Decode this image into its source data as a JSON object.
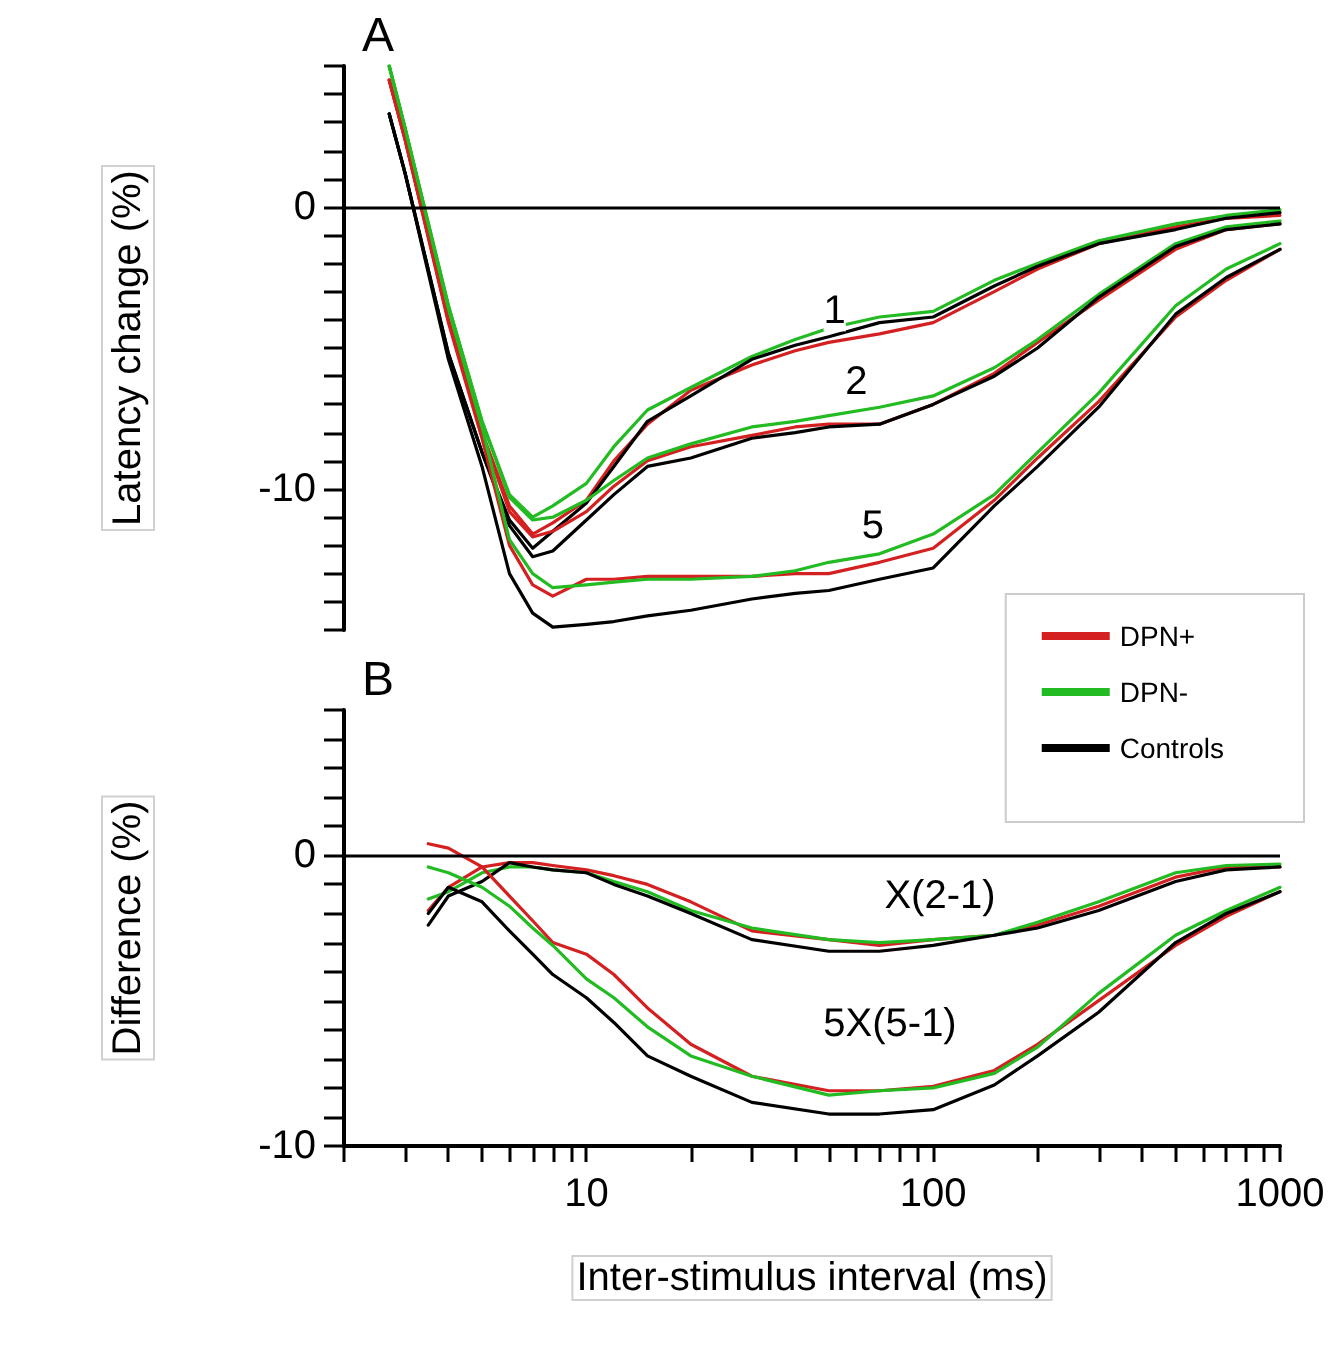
{
  "chart_data": [
    {
      "type": "line",
      "title": "A",
      "ylabel": "Latency change (%)",
      "xlim": [
        2,
        1000
      ],
      "ylim": [
        -15,
        5
      ],
      "yticks": [
        {
          "value": -15,
          "label": null
        },
        {
          "value": -14,
          "label": null
        },
        {
          "value": -13,
          "label": null
        },
        {
          "value": -12,
          "label": null
        },
        {
          "value": -11,
          "label": null
        },
        {
          "value": -10,
          "label": "-10"
        },
        {
          "value": -9,
          "label": null
        },
        {
          "value": -8,
          "label": null
        },
        {
          "value": -7,
          "label": null
        },
        {
          "value": -6,
          "label": null
        },
        {
          "value": -5,
          "label": null
        },
        {
          "value": -4,
          "label": null
        },
        {
          "value": -3,
          "label": null
        },
        {
          "value": -2,
          "label": null
        },
        {
          "value": -1,
          "label": null
        },
        {
          "value": 0,
          "label": "0"
        },
        {
          "value": 1,
          "label": null
        },
        {
          "value": 2,
          "label": null
        },
        {
          "value": 3,
          "label": null
        },
        {
          "value": 4,
          "label": null
        },
        {
          "value": 5,
          "label": null
        }
      ],
      "log": "x",
      "tick_labels": "y",
      "legend": "bottom right",
      "grid": false,
      "ref_lines": [
        {
          "axis": "y",
          "value": 0,
          "color": "#000000"
        }
      ],
      "annotations": [
        {
          "text": "1",
          "x": 52,
          "y": -3.7
        },
        {
          "text": "2",
          "x": 60,
          "y": -6.2
        },
        {
          "text": "5",
          "x": 67,
          "y": -11.3
        }
      ],
      "x": [
        2.7,
        3,
        4,
        5,
        6,
        7,
        8,
        10,
        12,
        15,
        20,
        30,
        40,
        50,
        70,
        100,
        150,
        200,
        300,
        500,
        700,
        1000
      ],
      "series": [
        {
          "name": "DPN+",
          "color": "#d42020",
          "values": [
            4.5,
            2.4,
            -4,
            -8,
            -10.6,
            -11.6,
            -11.2,
            -10.4,
            -9,
            -7.7,
            -6.5,
            -5.6,
            -5.1,
            -4.8,
            -4.5,
            -4.1,
            -3,
            -2.2,
            -1.3,
            -0.7,
            -0.4,
            -0.3
          ]
        },
        {
          "name": "DPN-",
          "color": "#22bb22",
          "values": [
            5,
            2.8,
            -3.5,
            -7.6,
            -10.2,
            -11,
            -10.6,
            -9.8,
            -8.5,
            -7.2,
            -6.4,
            -5.3,
            -4.7,
            -4.3,
            -3.9,
            -3.7,
            -2.6,
            -2,
            -1.2,
            -0.6,
            -0.3,
            -0.1
          ]
        },
        {
          "name": "Controls",
          "color": "#000000",
          "values": [
            3.3,
            1.2,
            -5.2,
            -8.7,
            -11.1,
            -12.1,
            -11.5,
            -10.5,
            -9.2,
            -7.6,
            -6.7,
            -5.4,
            -4.9,
            -4.6,
            -4.1,
            -3.9,
            -2.8,
            -2.1,
            -1.3,
            -0.8,
            -0.4,
            -0.2
          ]
        },
        {
          "color": "#d42020",
          "values": [
            4.5,
            2.4,
            -4,
            -8,
            -10.8,
            -11.7,
            -11.5,
            -10.8,
            -9.9,
            -9,
            -8.5,
            -8.1,
            -7.8,
            -7.7,
            -7.7,
            -7,
            -5.9,
            -4.8,
            -3.3,
            -1.5,
            -0.8,
            -0.6
          ]
        },
        {
          "color": "#22bb22",
          "values": [
            5,
            2.8,
            -3.5,
            -7.6,
            -10.3,
            -11.1,
            -11,
            -10.4,
            -9.7,
            -8.9,
            -8.4,
            -7.8,
            -7.6,
            -7.4,
            -7.1,
            -6.7,
            -5.7,
            -4.7,
            -3.1,
            -1.3,
            -0.7,
            -0.5
          ]
        },
        {
          "color": "#000000",
          "values": [
            3.3,
            1.2,
            -5.2,
            -8.7,
            -11.3,
            -12.4,
            -12.2,
            -11.1,
            -10.2,
            -9.2,
            -8.9,
            -8.2,
            -8,
            -7.8,
            -7.7,
            -7,
            -6,
            -5,
            -3.2,
            -1.4,
            -0.8,
            -0.6
          ]
        },
        {
          "color": "#d42020",
          "values": [
            4.5,
            2.4,
            -4.1,
            -8.2,
            -12,
            -13.4,
            -13.8,
            -13.2,
            -13.2,
            -13.1,
            -13.1,
            -13.1,
            -13,
            -13,
            -12.6,
            -12.1,
            -10.4,
            -8.9,
            -6.9,
            -3.9,
            -2.6,
            -1.5
          ]
        },
        {
          "color": "#22bb22",
          "values": [
            5,
            2.8,
            -3.6,
            -7.8,
            -11.8,
            -13,
            -13.5,
            -13.4,
            -13.3,
            -13.2,
            -13.2,
            -13.1,
            -12.9,
            -12.6,
            -12.3,
            -11.6,
            -10.2,
            -8.7,
            -6.6,
            -3.5,
            -2.2,
            -1.3
          ]
        },
        {
          "color": "#000000",
          "values": [
            3.3,
            1.2,
            -5.4,
            -9.2,
            -13,
            -14.4,
            -14.9,
            -14.8,
            -14.7,
            -14.5,
            -14.3,
            -13.9,
            -13.7,
            -13.6,
            -13.2,
            -12.8,
            -10.6,
            -9.2,
            -7.1,
            -3.8,
            -2.5,
            -1.5
          ]
        }
      ]
    },
    {
      "type": "line",
      "title": "B",
      "ylabel": "Difference (%)",
      "xlabel": "Inter-stimulus interval (ms)",
      "xlim": [
        2,
        1000
      ],
      "ylim": [
        -10,
        5
      ],
      "xticks": [
        {
          "value": 2,
          "label": null
        },
        {
          "value": 3,
          "label": null
        },
        {
          "value": 4,
          "label": null
        },
        {
          "value": 5,
          "label": null
        },
        {
          "value": 6,
          "label": null
        },
        {
          "value": 7,
          "label": null
        },
        {
          "value": 8,
          "label": null
        },
        {
          "value": 9,
          "label": null
        },
        10,
        {
          "value": 20,
          "label": null
        },
        {
          "value": 30,
          "label": null
        },
        {
          "value": 40,
          "label": null
        },
        {
          "value": 50,
          "label": null
        },
        {
          "value": 60,
          "label": null
        },
        {
          "value": 70,
          "label": null
        },
        {
          "value": 80,
          "label": null
        },
        {
          "value": 90,
          "label": null
        },
        100,
        {
          "value": 200,
          "label": null
        },
        {
          "value": 300,
          "label": null
        },
        {
          "value": 400,
          "label": null
        },
        {
          "value": 500,
          "label": null
        },
        {
          "value": 600,
          "label": null
        },
        {
          "value": 700,
          "label": null
        },
        {
          "value": 800,
          "label": null
        },
        {
          "value": 900,
          "label": null
        },
        1000
      ],
      "yticks": [
        {
          "value": -10,
          "label": "-10"
        },
        {
          "value": -9,
          "label": null
        },
        {
          "value": -8,
          "label": null
        },
        {
          "value": -7,
          "label": null
        },
        {
          "value": -6,
          "label": null
        },
        {
          "value": -5,
          "label": null
        },
        {
          "value": -4,
          "label": null
        },
        {
          "value": -3,
          "label": null
        },
        {
          "value": -2,
          "label": null
        },
        {
          "value": -1,
          "label": null
        },
        {
          "value": 0,
          "label": "0"
        },
        {
          "value": 1,
          "label": null
        },
        {
          "value": 2,
          "label": null
        },
        {
          "value": 3,
          "label": null
        },
        {
          "value": 4,
          "label": null
        },
        {
          "value": 5,
          "label": null
        }
      ],
      "log": "x",
      "grid": false,
      "ref_lines": [
        {
          "axis": "y",
          "value": 0,
          "color": "#000000"
        }
      ],
      "annotations": [
        "X(2-1)",
        "5X(5-1)"
      ],
      "x": [
        3.5,
        4,
        5,
        6,
        7,
        8,
        10,
        12,
        15,
        20,
        30,
        50,
        70,
        100,
        150,
        200,
        300,
        500,
        700,
        1000
      ],
      "series": [
        {
          "color": "#d42020",
          "values": [
            -1.9,
            -1.1,
            -0.4,
            -0.25,
            -0.25,
            -0.35,
            -0.5,
            -0.7,
            -1,
            -1.6,
            -2.6,
            -2.9,
            -3.1,
            -2.9,
            -2.75,
            -2.4,
            -1.75,
            -0.75,
            -0.4,
            -0.4
          ]
        },
        {
          "color": "#22bb22",
          "values": [
            -1.5,
            -1.25,
            -0.6,
            -0.4,
            -0.4,
            -0.5,
            -0.6,
            -0.9,
            -1.25,
            -1.9,
            -2.5,
            -2.9,
            -3,
            -2.9,
            -2.75,
            -2.3,
            -1.6,
            -0.6,
            -0.35,
            -0.3
          ]
        },
        {
          "color": "#000000",
          "values": [
            -2.4,
            -1.4,
            -0.9,
            -0.25,
            -0.4,
            -0.5,
            -0.6,
            -1,
            -1.4,
            -2,
            -2.9,
            -3.3,
            -3.3,
            -3.1,
            -2.75,
            -2.5,
            -1.9,
            -0.9,
            -0.5,
            -0.4
          ]
        },
        {
          "color": "#d42020",
          "values": [
            0.4,
            0.25,
            -0.4,
            -1.4,
            -2.25,
            -3,
            -3.4,
            -4.1,
            -5.25,
            -6.5,
            -7.6,
            -8.1,
            -8.1,
            -7.95,
            -7.4,
            -6.5,
            -5,
            -3.1,
            -2.1,
            -1.25
          ]
        },
        {
          "color": "#22bb22",
          "values": [
            -0.4,
            -0.6,
            -1.1,
            -1.75,
            -2.5,
            -3.1,
            -4.25,
            -4.9,
            -5.9,
            -6.9,
            -7.6,
            -8.25,
            -8.1,
            -8,
            -7.5,
            -6.6,
            -4.75,
            -2.75,
            -1.9,
            -1.1
          ]
        },
        {
          "color": "#000000",
          "values": [
            -2,
            -1.1,
            -1.6,
            -2.6,
            -3.4,
            -4.1,
            -4.9,
            -5.75,
            -6.9,
            -7.6,
            -8.5,
            -8.9,
            -8.9,
            -8.75,
            -7.9,
            -6.9,
            -5.4,
            -3,
            -2,
            -1.25
          ]
        }
      ]
    }
  ]
}
